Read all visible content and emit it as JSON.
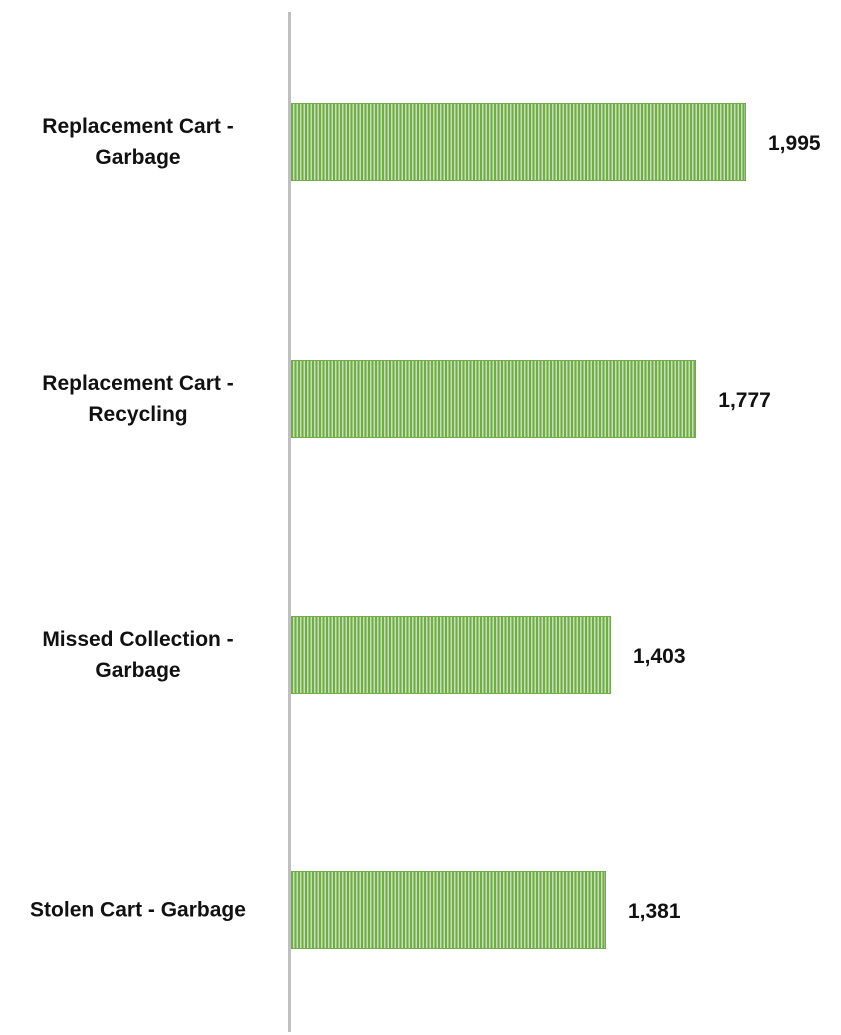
{
  "chart_data": {
    "type": "barh",
    "categories": [
      "Replacement Cart - Garbage",
      "Replacement Cart - Recycling",
      "Missed Collection - Garbage",
      "Stolen Cart - Garbage"
    ],
    "values": [
      1995,
      1777,
      1403,
      1381
    ],
    "value_labels": [
      "1,995",
      "1,777",
      "1,403",
      "1,381"
    ],
    "color": "#70ad47"
  }
}
